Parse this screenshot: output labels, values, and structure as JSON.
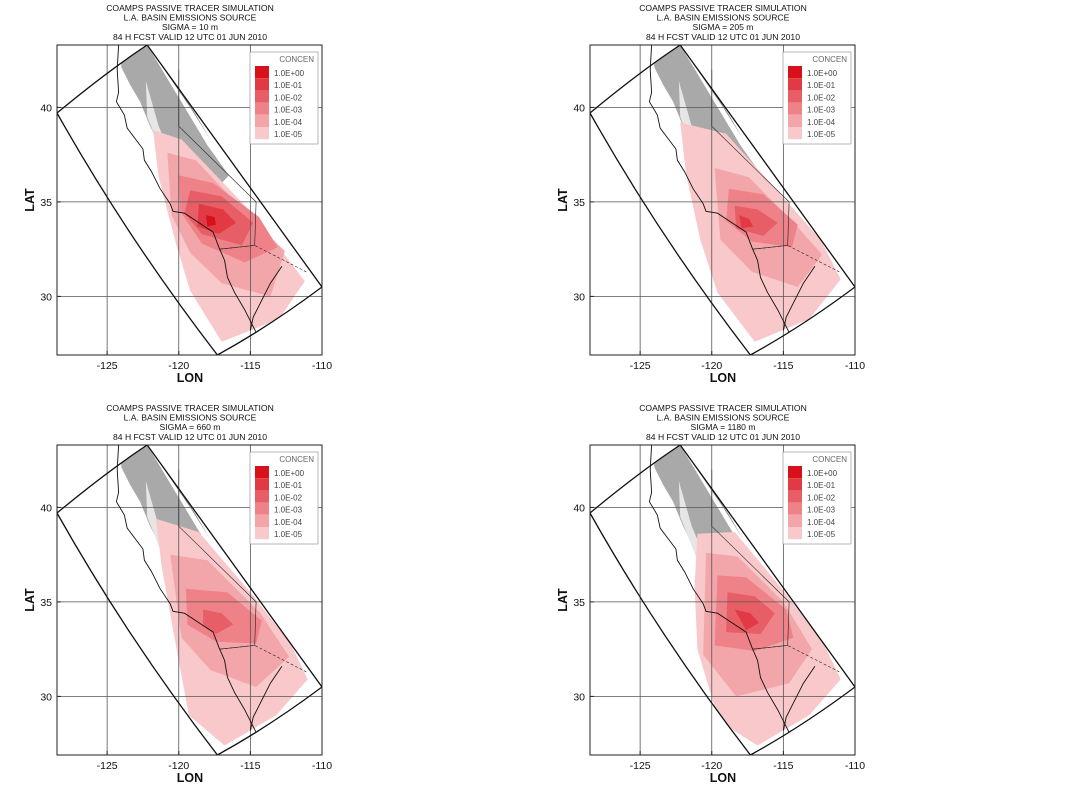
{
  "figure": {
    "panels": [
      {
        "title_lines": [
          "COAMPS PASSIVE TRACER SIMULATION",
          "L.A. BASIN EMISSIONS SOURCE",
          "SIGMA = 10 m",
          "84 H FCST VALID 12 UTC 01 JUN 2010"
        ],
        "sigma_m": 10
      },
      {
        "title_lines": [
          "COAMPS PASSIVE TRACER SIMULATION",
          "L.A. BASIN EMISSIONS SOURCE",
          "SIGMA = 205 m",
          "84 H FCST VALID 12 UTC 01 JUN 2010"
        ],
        "sigma_m": 205
      },
      {
        "title_lines": [
          "COAMPS PASSIVE TRACER SIMULATION",
          "L.A. BASIN EMISSIONS SOURCE",
          "SIGMA = 660 m",
          "84 H FCST VALID 12 UTC 01 JUN 2010"
        ],
        "sigma_m": 660
      },
      {
        "title_lines": [
          "COAMPS PASSIVE TRACER SIMULATION",
          "L.A. BASIN EMISSIONS SOURCE",
          "SIGMA = 1180 m",
          "84 H FCST VALID 12 UTC 01 JUN 2010"
        ],
        "sigma_m": 1180
      }
    ],
    "legend": {
      "title": "CONCEN",
      "levels": [
        "1.0E+00",
        "1.0E-01",
        "1.0E-02",
        "1.0E-03",
        "1.0E-04",
        "1.0E-05"
      ],
      "colors": [
        "#d8101c",
        "#e23a44",
        "#e85e66",
        "#ee8288",
        "#f3a6aa",
        "#f8c8ca"
      ]
    }
  },
  "chart_data": {
    "type": "heatmap",
    "xlabel": "LON",
    "ylabel": "LAT",
    "xlim": [
      -128.5,
      -110
    ],
    "ylim": [
      26.9,
      43.3
    ],
    "x_ticks": [
      -125,
      -120,
      -115,
      -110
    ],
    "y_ticks": [
      30,
      35,
      40
    ],
    "x_tick_labels": [
      "-125",
      "-120",
      "-115",
      "-110"
    ],
    "y_tick_labels": [
      "30",
      "35",
      "40"
    ],
    "grid": true,
    "legend_position": "top-right",
    "colorbar_title": "CONCEN",
    "contour_levels": [
      1.0,
      0.1,
      0.01,
      0.001,
      0.0001,
      1e-05
    ],
    "terrain_shading": "grayscale",
    "domain_corners_lonlat": [
      [
        -128.5,
        39.7
      ],
      [
        -122.2,
        43.3
      ],
      [
        -110.0,
        30.5
      ],
      [
        -117.3,
        26.9
      ]
    ],
    "panel_sigma_m": [
      10,
      205,
      660,
      1180
    ]
  }
}
